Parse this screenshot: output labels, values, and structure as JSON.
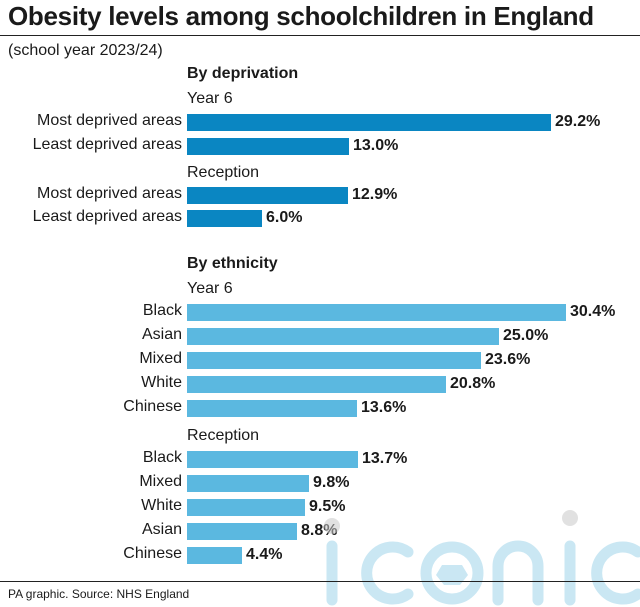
{
  "title": "Obesity levels among schoolchildren in England",
  "subtitle": "(school year 2023/24)",
  "source": "PA graphic. Source: NHS England",
  "watermark_text": "iconic",
  "colors": {
    "deprivation_bar": "#0a86c2",
    "ethnicity_bar": "#5bb8e0"
  },
  "chart_data": {
    "type": "bar",
    "orientation": "horizontal",
    "unit": "%",
    "xlim": [
      0,
      30.4
    ],
    "grid": false,
    "sections": [
      {
        "heading": "By deprivation",
        "groups": [
          {
            "heading": "Year 6",
            "categories": [
              "Most deprived areas",
              "Least deprived areas"
            ],
            "values": [
              29.2,
              13.0
            ],
            "labels": [
              "29.2%",
              "13.0%"
            ]
          },
          {
            "heading": "Reception",
            "categories": [
              "Most deprived areas",
              "Least deprived areas"
            ],
            "values": [
              12.9,
              6.0
            ],
            "labels": [
              "12.9%",
              "6.0%"
            ]
          }
        ]
      },
      {
        "heading": "By ethnicity",
        "groups": [
          {
            "heading": "Year 6",
            "categories": [
              "Black",
              "Asian",
              "Mixed",
              "White",
              "Chinese"
            ],
            "values": [
              30.4,
              25.0,
              23.6,
              20.8,
              13.6
            ],
            "labels": [
              "30.4%",
              "25.0%",
              "23.6%",
              "20.8%",
              "13.6%"
            ]
          },
          {
            "heading": "Reception",
            "categories": [
              "Black",
              "Mixed",
              "White",
              "Asian",
              "Chinese"
            ],
            "values": [
              13.7,
              9.8,
              9.5,
              8.8,
              4.4
            ],
            "labels": [
              "13.7%",
              "9.8%",
              "9.5%",
              "8.8%",
              "4.4%"
            ]
          }
        ]
      }
    ]
  }
}
